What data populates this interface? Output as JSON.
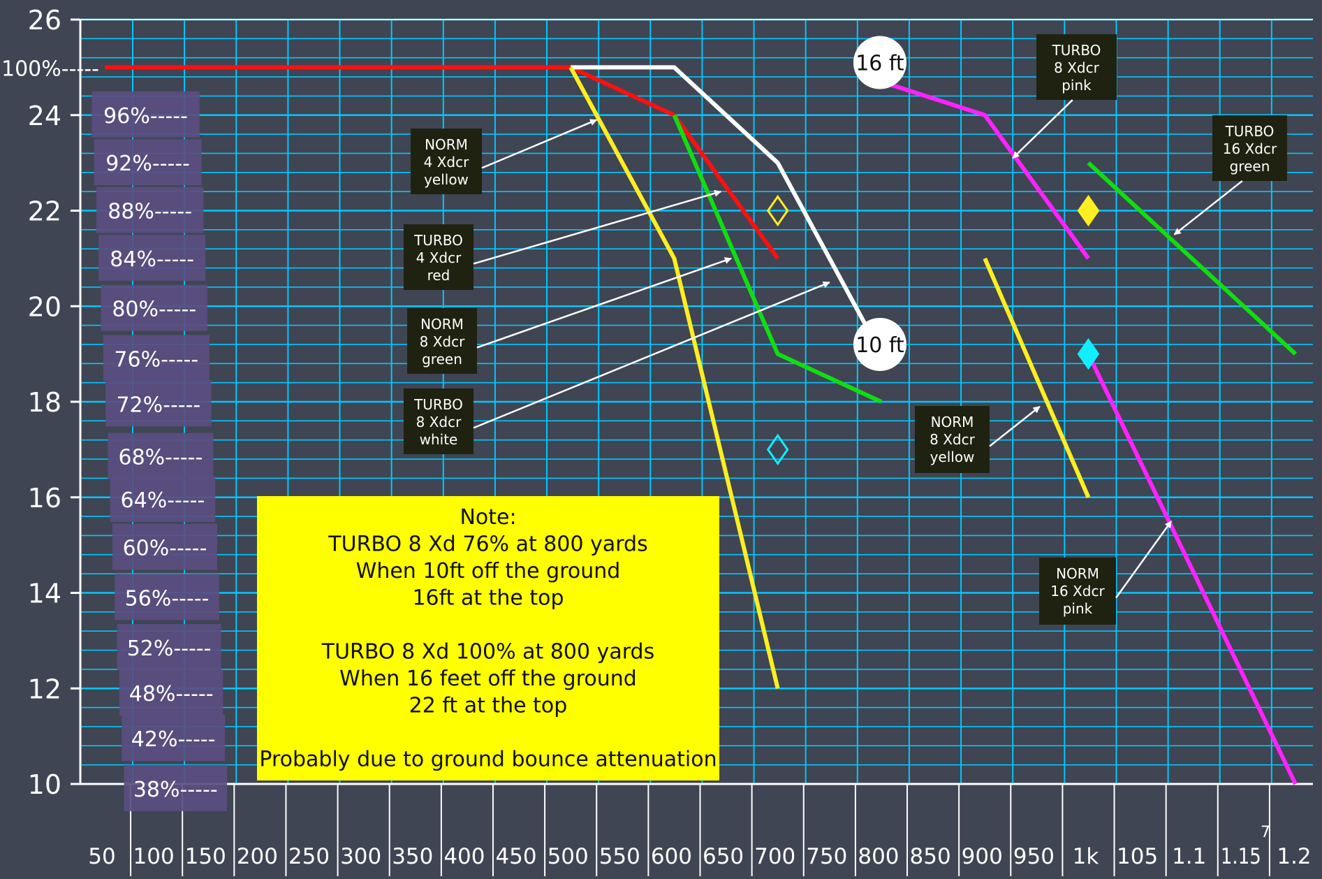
{
  "slide_number": "7",
  "note": {
    "lines": [
      "Note:",
      "TURBO 8 Xd 76% at 800 yards",
      "When 10ft off the ground",
      "16ft at the top",
      "",
      "TURBO 8 Xd 100% at 800 yards",
      "When 16 feet off the ground",
      "22 ft at the top",
      "",
      "Probably due to ground bounce attenuation"
    ]
  },
  "colors": {
    "background": "#3f4553",
    "grid": "#00c8ff",
    "axis": "#ffffff",
    "red": "#ff1010",
    "white": "#ffffff",
    "yellow": "#ffee22",
    "green": "#11dd11",
    "pink": "#ff22ff",
    "cyan": "#11eeff",
    "label_box": "#1f2210",
    "percent_box": "#5a4e80",
    "note_box": "#ffff00"
  },
  "chart_data": {
    "type": "line",
    "x_tick_labels": [
      "50",
      "100",
      "150",
      "200",
      "250",
      "300",
      "350",
      "400",
      "450",
      "500",
      "550",
      "600",
      "650",
      "700",
      "750",
      "800",
      "850",
      "900",
      "950",
      "1k",
      "105",
      "1.1",
      "1.15",
      "1.2"
    ],
    "y_ticks": [
      10,
      12,
      14,
      16,
      18,
      20,
      22,
      24,
      26
    ],
    "ylim": [
      10,
      26
    ],
    "percent_labels": [
      {
        "y": 25.0,
        "text": "100%-----"
      },
      {
        "y": 24.0,
        "text": "96%-----"
      },
      {
        "y": 23.0,
        "text": "92%-----"
      },
      {
        "y": 22.0,
        "text": "88%-----"
      },
      {
        "y": 21.0,
        "text": "84%-----"
      },
      {
        "y": 19.95,
        "text": "80%-----"
      },
      {
        "y": 18.9,
        "text": "76%-----"
      },
      {
        "y": 17.95,
        "text": "72%-----"
      },
      {
        "y": 16.85,
        "text": "68%-----"
      },
      {
        "y": 15.95,
        "text": "64%-----"
      },
      {
        "y": 14.95,
        "text": "60%-----"
      },
      {
        "y": 13.9,
        "text": "56%-----"
      },
      {
        "y": 12.85,
        "text": "52%-----"
      },
      {
        "y": 11.9,
        "text": "48%-----"
      },
      {
        "y": 10.95,
        "text": "42%-----"
      },
      {
        "y": 9.9,
        "text": "38%-----"
      }
    ],
    "series": [
      {
        "key": "turbo4",
        "color": "red",
        "points": [
          [
            50,
            25
          ],
          [
            500,
            25
          ],
          [
            600,
            24
          ],
          [
            700,
            21
          ]
        ]
      },
      {
        "key": "turbo8",
        "color": "white",
        "points": [
          [
            500,
            25
          ],
          [
            600,
            25
          ],
          [
            700,
            23
          ],
          [
            800,
            19
          ]
        ]
      },
      {
        "key": "norm4",
        "color": "yellow",
        "points": [
          [
            500,
            25
          ],
          [
            600,
            21
          ],
          [
            700,
            12
          ]
        ]
      },
      {
        "key": "norm8",
        "color": "green",
        "points": [
          [
            600,
            24
          ],
          [
            700,
            19
          ],
          [
            800,
            18
          ]
        ]
      },
      {
        "key": "turbo8pink",
        "color": "pink",
        "points": [
          [
            800,
            24.7
          ],
          [
            900,
            24
          ],
          [
            1000,
            21
          ]
        ]
      },
      {
        "key": "norm8yellow",
        "color": "yellow",
        "points": [
          [
            900,
            21
          ],
          [
            1000,
            16
          ]
        ]
      },
      {
        "key": "turbo16",
        "color": "green",
        "points": [
          [
            1000,
            23
          ],
          [
            1200,
            19
          ]
        ]
      },
      {
        "key": "norm16",
        "color": "pink",
        "points": [
          [
            1000,
            19
          ],
          [
            1200,
            10
          ]
        ]
      }
    ],
    "markers": [
      {
        "x": 700,
        "y": 22,
        "color": "yellow",
        "filled": false
      },
      {
        "x": 700,
        "y": 17,
        "color": "cyan",
        "filled": false
      },
      {
        "x": 1000,
        "y": 22,
        "color": "yellow",
        "filled": true
      },
      {
        "x": 1000,
        "y": 19,
        "color": "cyan",
        "filled": true
      }
    ],
    "height_labels": [
      {
        "x": 800,
        "y": 25.1,
        "text": "16 ft"
      },
      {
        "x": 800,
        "y": 19.2,
        "text": "10 ft"
      }
    ],
    "annotations": [
      {
        "lines": [
          "NORM",
          "4 Xdcr",
          "yellow"
        ],
        "arrow_to": [
          525,
          23.9
        ]
      },
      {
        "lines": [
          "TURBO",
          "4 Xdcr",
          "red"
        ],
        "arrow_to": [
          645,
          22.4
        ]
      },
      {
        "lines": [
          "NORM",
          "8 Xdcr",
          "green"
        ],
        "arrow_to": [
          655,
          21
        ]
      },
      {
        "lines": [
          "TURBO",
          "8 Xdcr",
          "white"
        ],
        "arrow_to": [
          750,
          20.5
        ]
      },
      {
        "lines": [
          "TURBO",
          "8 Xdcr",
          "pink"
        ],
        "arrow_to": [
          927,
          23.1
        ]
      },
      {
        "lines": [
          "TURBO",
          "16 Xdcr",
          "green"
        ],
        "arrow_to": [
          1083,
          21.5
        ]
      },
      {
        "lines": [
          "NORM",
          "8 Xdcr",
          "yellow"
        ],
        "arrow_to": [
          953,
          17.9
        ]
      },
      {
        "lines": [
          "NORM",
          "16 Xdcr",
          "pink"
        ],
        "arrow_to": [
          1080,
          15.5
        ]
      }
    ]
  }
}
